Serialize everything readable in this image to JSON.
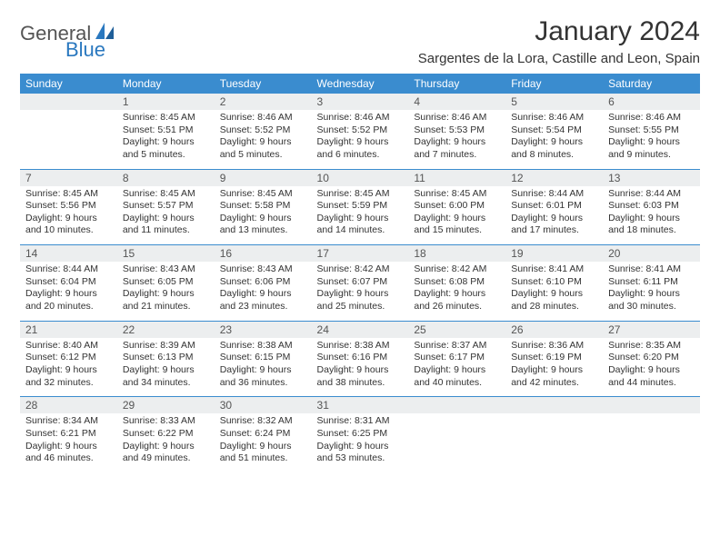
{
  "logo": {
    "text1": "General",
    "text2": "Blue"
  },
  "title": "January 2024",
  "location": "Sargentes de la Lora, Castille and Leon, Spain",
  "dayHeaders": [
    "Sunday",
    "Monday",
    "Tuesday",
    "Wednesday",
    "Thursday",
    "Friday",
    "Saturday"
  ],
  "colors": {
    "headerBg": "#3a8ccf",
    "headerText": "#ffffff",
    "dayNumBg": "#eceeef",
    "ruleColor": "#3a8ccf",
    "logoBlue": "#2a78bf"
  },
  "weeks": [
    {
      "nums": [
        "",
        "1",
        "2",
        "3",
        "4",
        "5",
        "6"
      ],
      "cells": [
        "",
        "Sunrise: 8:45 AM\nSunset: 5:51 PM\nDaylight: 9 hours\nand 5 minutes.",
        "Sunrise: 8:46 AM\nSunset: 5:52 PM\nDaylight: 9 hours\nand 5 minutes.",
        "Sunrise: 8:46 AM\nSunset: 5:52 PM\nDaylight: 9 hours\nand 6 minutes.",
        "Sunrise: 8:46 AM\nSunset: 5:53 PM\nDaylight: 9 hours\nand 7 minutes.",
        "Sunrise: 8:46 AM\nSunset: 5:54 PM\nDaylight: 9 hours\nand 8 minutes.",
        "Sunrise: 8:46 AM\nSunset: 5:55 PM\nDaylight: 9 hours\nand 9 minutes."
      ]
    },
    {
      "nums": [
        "7",
        "8",
        "9",
        "10",
        "11",
        "12",
        "13"
      ],
      "cells": [
        "Sunrise: 8:45 AM\nSunset: 5:56 PM\nDaylight: 9 hours\nand 10 minutes.",
        "Sunrise: 8:45 AM\nSunset: 5:57 PM\nDaylight: 9 hours\nand 11 minutes.",
        "Sunrise: 8:45 AM\nSunset: 5:58 PM\nDaylight: 9 hours\nand 13 minutes.",
        "Sunrise: 8:45 AM\nSunset: 5:59 PM\nDaylight: 9 hours\nand 14 minutes.",
        "Sunrise: 8:45 AM\nSunset: 6:00 PM\nDaylight: 9 hours\nand 15 minutes.",
        "Sunrise: 8:44 AM\nSunset: 6:01 PM\nDaylight: 9 hours\nand 17 minutes.",
        "Sunrise: 8:44 AM\nSunset: 6:03 PM\nDaylight: 9 hours\nand 18 minutes."
      ]
    },
    {
      "nums": [
        "14",
        "15",
        "16",
        "17",
        "18",
        "19",
        "20"
      ],
      "cells": [
        "Sunrise: 8:44 AM\nSunset: 6:04 PM\nDaylight: 9 hours\nand 20 minutes.",
        "Sunrise: 8:43 AM\nSunset: 6:05 PM\nDaylight: 9 hours\nand 21 minutes.",
        "Sunrise: 8:43 AM\nSunset: 6:06 PM\nDaylight: 9 hours\nand 23 minutes.",
        "Sunrise: 8:42 AM\nSunset: 6:07 PM\nDaylight: 9 hours\nand 25 minutes.",
        "Sunrise: 8:42 AM\nSunset: 6:08 PM\nDaylight: 9 hours\nand 26 minutes.",
        "Sunrise: 8:41 AM\nSunset: 6:10 PM\nDaylight: 9 hours\nand 28 minutes.",
        "Sunrise: 8:41 AM\nSunset: 6:11 PM\nDaylight: 9 hours\nand 30 minutes."
      ]
    },
    {
      "nums": [
        "21",
        "22",
        "23",
        "24",
        "25",
        "26",
        "27"
      ],
      "cells": [
        "Sunrise: 8:40 AM\nSunset: 6:12 PM\nDaylight: 9 hours\nand 32 minutes.",
        "Sunrise: 8:39 AM\nSunset: 6:13 PM\nDaylight: 9 hours\nand 34 minutes.",
        "Sunrise: 8:38 AM\nSunset: 6:15 PM\nDaylight: 9 hours\nand 36 minutes.",
        "Sunrise: 8:38 AM\nSunset: 6:16 PM\nDaylight: 9 hours\nand 38 minutes.",
        "Sunrise: 8:37 AM\nSunset: 6:17 PM\nDaylight: 9 hours\nand 40 minutes.",
        "Sunrise: 8:36 AM\nSunset: 6:19 PM\nDaylight: 9 hours\nand 42 minutes.",
        "Sunrise: 8:35 AM\nSunset: 6:20 PM\nDaylight: 9 hours\nand 44 minutes."
      ]
    },
    {
      "nums": [
        "28",
        "29",
        "30",
        "31",
        "",
        "",
        ""
      ],
      "cells": [
        "Sunrise: 8:34 AM\nSunset: 6:21 PM\nDaylight: 9 hours\nand 46 minutes.",
        "Sunrise: 8:33 AM\nSunset: 6:22 PM\nDaylight: 9 hours\nand 49 minutes.",
        "Sunrise: 8:32 AM\nSunset: 6:24 PM\nDaylight: 9 hours\nand 51 minutes.",
        "Sunrise: 8:31 AM\nSunset: 6:25 PM\nDaylight: 9 hours\nand 53 minutes.",
        "",
        "",
        ""
      ]
    }
  ]
}
